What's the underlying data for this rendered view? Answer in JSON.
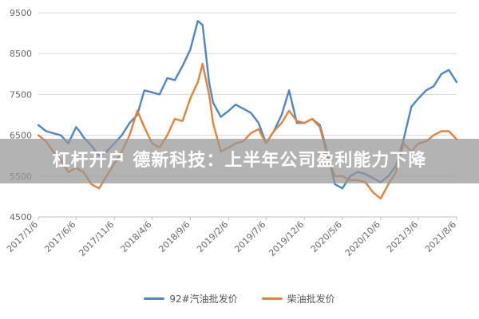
{
  "headline": "杠杆开户 德新科技：上半年公司盈利能力下降",
  "chart_data": {
    "type": "line",
    "ylim": [
      4500,
      9500
    ],
    "yticks": [
      4500,
      5500,
      6500,
      7500,
      8500,
      9500
    ],
    "x_tick_labels": [
      "2017/1/6",
      "2017/6/6",
      "2017/11/6",
      "2018/4/6",
      "2018/9/6",
      "2019/2/6",
      "2019/7/6",
      "2019/12/6",
      "2020/5/6",
      "2020/10/6",
      "2021/3/6",
      "2021/8/6"
    ],
    "grid": true,
    "legend_position": "bottom",
    "series": [
      {
        "name": "92#汽油批发价",
        "color": "#4f86c6",
        "points": [
          [
            "2017/1/6",
            6750
          ],
          [
            "2017/2/6",
            6600
          ],
          [
            "2017/3/6",
            6550
          ],
          [
            "2017/4/6",
            6500
          ],
          [
            "2017/5/6",
            6300
          ],
          [
            "2017/6/6",
            6700
          ],
          [
            "2017/6/20",
            6600
          ],
          [
            "2017/7/6",
            6450
          ],
          [
            "2017/8/6",
            6250
          ],
          [
            "2017/9/6",
            6000
          ],
          [
            "2017/10/6",
            6100
          ],
          [
            "2017/11/6",
            6300
          ],
          [
            "2017/12/6",
            6500
          ],
          [
            "2018/1/6",
            6800
          ],
          [
            "2018/2/6",
            7000
          ],
          [
            "2018/3/6",
            7600
          ],
          [
            "2018/4/6",
            7550
          ],
          [
            "2018/5/6",
            7500
          ],
          [
            "2018/6/6",
            7900
          ],
          [
            "2018/7/6",
            7850
          ],
          [
            "2018/8/6",
            8200
          ],
          [
            "2018/9/6",
            8600
          ],
          [
            "2018/10/6",
            9300
          ],
          [
            "2018/10/25",
            9200
          ],
          [
            "2018/11/20",
            7800
          ],
          [
            "2018/12/6",
            7300
          ],
          [
            "2019/1/6",
            6950
          ],
          [
            "2019/2/6",
            7100
          ],
          [
            "2019/3/6",
            7250
          ],
          [
            "2019/4/6",
            7150
          ],
          [
            "2019/5/6",
            7050
          ],
          [
            "2019/6/6",
            6800
          ],
          [
            "2019/7/6",
            6300
          ],
          [
            "2019/8/6",
            6600
          ],
          [
            "2019/9/6",
            7000
          ],
          [
            "2019/10/6",
            7600
          ],
          [
            "2019/11/6",
            6800
          ],
          [
            "2019/12/6",
            6800
          ],
          [
            "2020/1/6",
            6900
          ],
          [
            "2020/2/6",
            6750
          ],
          [
            "2020/3/6",
            6100
          ],
          [
            "2020/4/6",
            5300
          ],
          [
            "2020/5/6",
            5200
          ],
          [
            "2020/6/6",
            5500
          ],
          [
            "2020/7/6",
            5600
          ],
          [
            "2020/8/6",
            5550
          ],
          [
            "2020/9/6",
            5450
          ],
          [
            "2020/10/6",
            5350
          ],
          [
            "2020/11/6",
            5500
          ],
          [
            "2020/12/6",
            5750
          ],
          [
            "2021/1/6",
            6400
          ],
          [
            "2021/2/6",
            7200
          ],
          [
            "2021/3/6",
            7400
          ],
          [
            "2021/4/6",
            7600
          ],
          [
            "2021/5/6",
            7700
          ],
          [
            "2021/6/6",
            8000
          ],
          [
            "2021/7/6",
            8100
          ],
          [
            "2021/8/6",
            7800
          ]
        ]
      },
      {
        "name": "柴油批发价",
        "color": "#e3823a",
        "points": [
          [
            "2017/1/6",
            6500
          ],
          [
            "2017/2/6",
            6350
          ],
          [
            "2017/3/6",
            6100
          ],
          [
            "2017/4/6",
            5900
          ],
          [
            "2017/5/6",
            5600
          ],
          [
            "2017/6/6",
            5700
          ],
          [
            "2017/7/6",
            5600
          ],
          [
            "2017/8/6",
            5300
          ],
          [
            "2017/9/6",
            5200
          ],
          [
            "2017/10/6",
            5500
          ],
          [
            "2017/11/6",
            5800
          ],
          [
            "2017/12/6",
            6100
          ],
          [
            "2018/1/6",
            6500
          ],
          [
            "2018/2/6",
            7100
          ],
          [
            "2018/3/6",
            6700
          ],
          [
            "2018/4/6",
            6300
          ],
          [
            "2018/5/6",
            6200
          ],
          [
            "2018/6/6",
            6500
          ],
          [
            "2018/7/6",
            6900
          ],
          [
            "2018/8/6",
            6850
          ],
          [
            "2018/9/6",
            7400
          ],
          [
            "2018/10/6",
            7800
          ],
          [
            "2018/10/25",
            8250
          ],
          [
            "2018/11/20",
            7500
          ],
          [
            "2018/12/6",
            6800
          ],
          [
            "2019/1/6",
            6100
          ],
          [
            "2019/2/6",
            6200
          ],
          [
            "2019/3/6",
            6300
          ],
          [
            "2019/4/6",
            6350
          ],
          [
            "2019/5/6",
            6550
          ],
          [
            "2019/6/6",
            6650
          ],
          [
            "2019/7/6",
            6300
          ],
          [
            "2019/8/6",
            6600
          ],
          [
            "2019/9/6",
            6800
          ],
          [
            "2019/10/6",
            7100
          ],
          [
            "2019/11/6",
            6850
          ],
          [
            "2019/12/6",
            6800
          ],
          [
            "2020/1/6",
            6900
          ],
          [
            "2020/2/6",
            6700
          ],
          [
            "2020/3/6",
            6000
          ],
          [
            "2020/4/6",
            5500
          ],
          [
            "2020/5/6",
            5500
          ],
          [
            "2020/6/6",
            5400
          ],
          [
            "2020/7/6",
            5400
          ],
          [
            "2020/8/6",
            5350
          ],
          [
            "2020/9/6",
            5100
          ],
          [
            "2020/10/6",
            4950
          ],
          [
            "2020/11/6",
            5300
          ],
          [
            "2020/12/6",
            5600
          ],
          [
            "2021/1/6",
            6300
          ],
          [
            "2021/2/6",
            6100
          ],
          [
            "2021/3/6",
            6300
          ],
          [
            "2021/4/6",
            6350
          ],
          [
            "2021/5/6",
            6500
          ],
          [
            "2021/6/6",
            6600
          ],
          [
            "2021/7/6",
            6600
          ],
          [
            "2021/8/6",
            6400
          ]
        ]
      }
    ]
  }
}
